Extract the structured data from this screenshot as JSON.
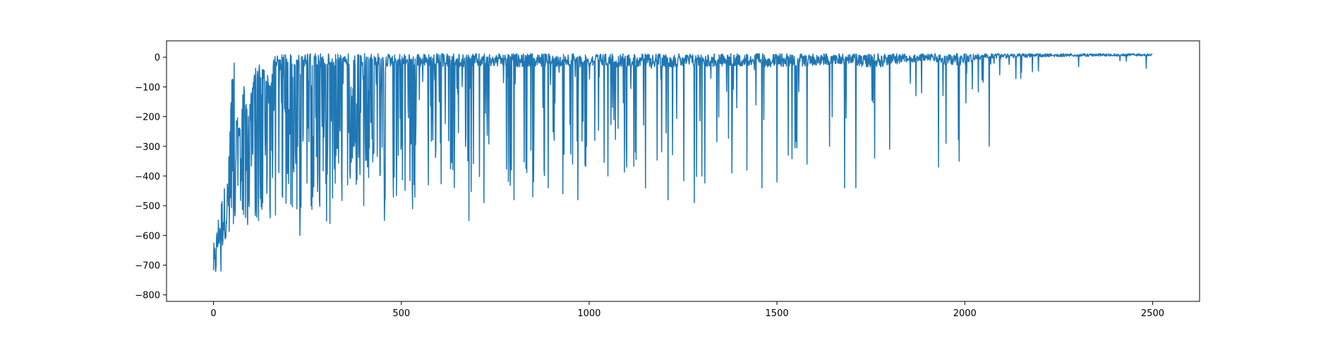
{
  "chart_data": {
    "type": "line",
    "title": "",
    "xlabel": "",
    "ylabel": "",
    "xlim": [
      -125,
      2625
    ],
    "ylim": [
      -822,
      55
    ],
    "grid": false,
    "legend": "none",
    "x_ticks": [
      0,
      500,
      1000,
      1500,
      2000,
      2500
    ],
    "y_ticks": [
      0,
      -100,
      -200,
      -300,
      -400,
      -500,
      -600,
      -700,
      -800
    ],
    "series": [
      {
        "name": "",
        "color": "#1f77b4",
        "n_points": 2500,
        "x": [
          0,
          2,
          4,
          6,
          8,
          10,
          12,
          14,
          16,
          20,
          25,
          30,
          35,
          40,
          50,
          60,
          70,
          80,
          90,
          100,
          110,
          120,
          130,
          140,
          150,
          160,
          170,
          180,
          190,
          200,
          210,
          220,
          230,
          240,
          250,
          260,
          270,
          280,
          290,
          300,
          310,
          320,
          330,
          340,
          350,
          360,
          380,
          400,
          420,
          440,
          460,
          480,
          500,
          520,
          540,
          560,
          580,
          600,
          650,
          700,
          750,
          800,
          850,
          900,
          950,
          1000,
          1050,
          1100,
          1150,
          1200,
          1250,
          1300,
          1350,
          1400,
          1450,
          1500,
          1550,
          1600,
          1650,
          1700,
          1750,
          1800,
          1850,
          1900,
          1950,
          2000,
          2050,
          2100,
          2150,
          2200,
          2250,
          2300,
          2350,
          2400,
          2450,
          2499
        ],
        "mean": [
          -740,
          -720,
          -690,
          -660,
          -640,
          -620,
          -600,
          -580,
          -560,
          -540,
          -530,
          -520,
          -510,
          -500,
          -495,
          -490,
          -485,
          -480,
          -470,
          -460,
          -455,
          -445,
          -430,
          -410,
          -390,
          -370,
          -350,
          -330,
          -300,
          -280,
          -260,
          -240,
          -230,
          -220,
          -210,
          -200,
          -190,
          -180,
          -170,
          -160,
          -150,
          -140,
          -130,
          -120,
          -112,
          -105,
          -95,
          -85,
          -75,
          -68,
          -62,
          -56,
          -52,
          -48,
          -45,
          -42,
          -40,
          -38,
          -34,
          -30,
          -28,
          -26,
          -24,
          -22,
          -20,
          -19,
          -18,
          -17,
          -16,
          -15,
          -14,
          -13,
          -12,
          -11,
          -10,
          -10,
          -9,
          -8,
          -7,
          -6,
          -5,
          -5,
          -4,
          -3,
          -2,
          -1,
          0,
          0,
          1,
          1,
          2,
          2,
          3,
          3,
          3,
          4
        ],
        "low": [
          -760,
          -780,
          -775,
          -750,
          -720,
          -700,
          -680,
          -660,
          -640,
          -720,
          -640,
          -620,
          -600,
          -600,
          -590,
          -585,
          -580,
          -575,
          -570,
          -560,
          -560,
          -555,
          -550,
          -550,
          -545,
          -540,
          -540,
          -535,
          -530,
          -525,
          -520,
          -600,
          -600,
          -560,
          -540,
          -520,
          -530,
          -540,
          -560,
          -560,
          -520,
          -520,
          -520,
          -500,
          -480,
          -470,
          -460,
          -450,
          -440,
          -480,
          -550,
          -480,
          -470,
          -470,
          -510,
          -490,
          -480,
          -460,
          -460,
          -550,
          -490,
          -480,
          -470,
          -440,
          -400,
          -420,
          -400,
          -400,
          -430,
          -410,
          -470,
          -480,
          -350,
          -340,
          -330,
          -440,
          -350,
          -330,
          -300,
          -280,
          -440,
          -300,
          -250,
          -170,
          -330,
          -300,
          -120,
          -120,
          -100,
          -90,
          -80,
          -70,
          -70,
          -60,
          -55,
          -50
        ],
        "high": [
          -620,
          -630,
          -620,
          -600,
          -580,
          -560,
          -540,
          -520,
          -500,
          -470,
          -440,
          -430,
          -420,
          -360,
          -20,
          -170,
          -240,
          -80,
          -170,
          -120,
          -40,
          -20,
          -30,
          -40,
          -80,
          8,
          10,
          10,
          12,
          12,
          12,
          12,
          12,
          12,
          12,
          12,
          12,
          12,
          12,
          12,
          12,
          12,
          12,
          12,
          12,
          12,
          12,
          12,
          12,
          12,
          12,
          12,
          12,
          12,
          12,
          12,
          12,
          12,
          12,
          12,
          12,
          12,
          12,
          12,
          12,
          12,
          12,
          12,
          12,
          12,
          12,
          12,
          12,
          12,
          12,
          12,
          12,
          12,
          12,
          12,
          12,
          12,
          12,
          12,
          12,
          12,
          12,
          12,
          12,
          12,
          12,
          12,
          12,
          12,
          12,
          12
        ],
        "spikes": [
          [
            20,
            -720
          ],
          [
            30,
            -600
          ],
          [
            55,
            -20
          ],
          [
            85,
            -540
          ],
          [
            120,
            -550
          ],
          [
            150,
            -510
          ],
          [
            160,
            -10
          ],
          [
            230,
            -600
          ],
          [
            260,
            -500
          ],
          [
            310,
            -560
          ],
          [
            400,
            -500
          ],
          [
            455,
            -550
          ],
          [
            530,
            -510
          ],
          [
            680,
            -550
          ],
          [
            720,
            -490
          ],
          [
            800,
            -480
          ],
          [
            850,
            -470
          ],
          [
            880,
            -380
          ],
          [
            930,
            -460
          ],
          [
            970,
            -480
          ],
          [
            1050,
            -400
          ],
          [
            1100,
            -370
          ],
          [
            1150,
            -440
          ],
          [
            1210,
            -480
          ],
          [
            1280,
            -490
          ],
          [
            1300,
            -400
          ],
          [
            1380,
            -390
          ],
          [
            1420,
            -380
          ],
          [
            1460,
            -440
          ],
          [
            1500,
            -420
          ],
          [
            1530,
            -330
          ],
          [
            1580,
            -360
          ],
          [
            1640,
            -300
          ],
          [
            1680,
            -440
          ],
          [
            1710,
            -440
          ],
          [
            1760,
            -340
          ],
          [
            1800,
            -310
          ],
          [
            1870,
            -130
          ],
          [
            1930,
            -370
          ],
          [
            1950,
            -290
          ],
          [
            1985,
            -350
          ],
          [
            2065,
            -300
          ]
        ]
      }
    ]
  }
}
